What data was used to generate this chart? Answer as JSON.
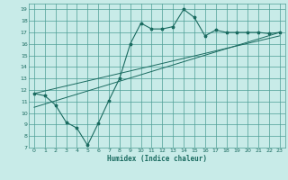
{
  "title": "",
  "xlabel": "Humidex (Indice chaleur)",
  "ylabel": "",
  "bg_color": "#c8ebe8",
  "grid_color": "#4d9e96",
  "line_color": "#1a6b60",
  "xlim": [
    -0.5,
    23.5
  ],
  "ylim": [
    7,
    19.5
  ],
  "xticks": [
    0,
    1,
    2,
    3,
    4,
    5,
    6,
    7,
    8,
    9,
    10,
    11,
    12,
    13,
    14,
    15,
    16,
    17,
    18,
    19,
    20,
    21,
    22,
    23
  ],
  "yticks": [
    7,
    8,
    9,
    10,
    11,
    12,
    13,
    14,
    15,
    16,
    17,
    18,
    19
  ],
  "curve1_x": [
    0,
    1,
    2,
    3,
    4,
    5,
    6,
    7,
    8,
    9,
    10,
    11,
    12,
    13,
    14,
    15,
    16,
    17,
    18,
    19,
    20,
    21,
    22,
    23
  ],
  "curve1_y": [
    11.7,
    11.5,
    10.7,
    9.2,
    8.7,
    7.2,
    9.1,
    11.1,
    13.0,
    16.0,
    17.8,
    17.3,
    17.3,
    17.5,
    19.0,
    18.3,
    16.7,
    17.2,
    17.0,
    17.0,
    17.0,
    17.0,
    16.9,
    17.0
  ],
  "line1_x": [
    0,
    23
  ],
  "line1_y": [
    10.5,
    17.0
  ],
  "line2_x": [
    0,
    23
  ],
  "line2_y": [
    11.7,
    16.7
  ]
}
